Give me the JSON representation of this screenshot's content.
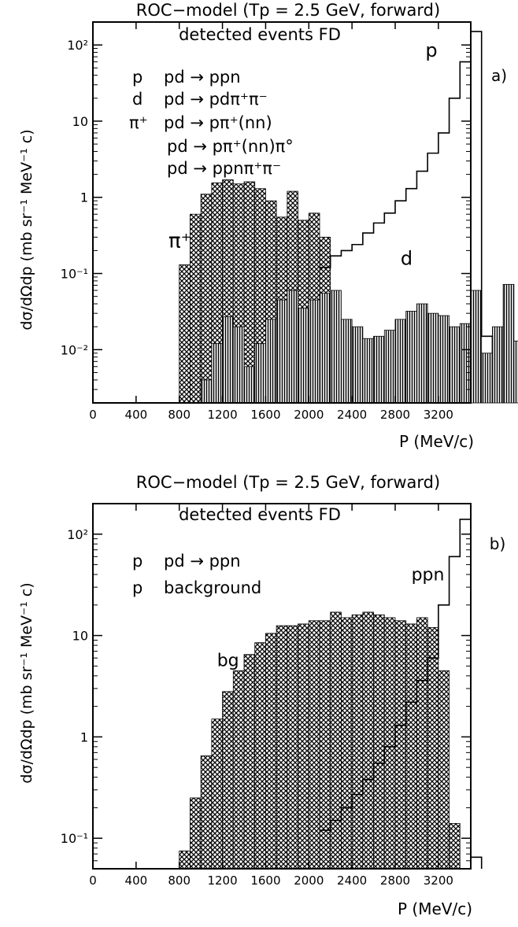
{
  "chart_data": [
    {
      "type": "step-histogram",
      "panel_label": "a)",
      "title": "ROC−model (Tp = 2.5 GeV, forward)",
      "subtitle": "detected events FD",
      "xlabel": "P (MeV/c)",
      "ylabel": "dσ/dΩdp (mb sr⁻¹ MeV⁻¹ c)",
      "xlim": [
        0,
        3500
      ],
      "ylim": [
        0.002,
        200
      ],
      "yscale": "log",
      "xticks": [
        0,
        400,
        800,
        1200,
        1600,
        2000,
        2400,
        2800,
        3200
      ],
      "yticks": [
        {
          "value": 0.01,
          "label": "10⁻²"
        },
        {
          "value": 0.1,
          "label": "10⁻¹"
        },
        {
          "value": 1,
          "label": "1"
        },
        {
          "value": 10,
          "label": "10"
        },
        {
          "value": 100,
          "label": "10²"
        }
      ],
      "bin_width": 100,
      "legend": [
        {
          "symbol": "p",
          "reaction": "pd → ppn"
        },
        {
          "symbol": "d",
          "reaction": "pd → pdπ⁺π⁻"
        },
        {
          "symbol": "π⁺",
          "reaction": "pd → pπ⁺(nn)"
        },
        {
          "symbol": "",
          "reaction": "pd → pπ⁺(nn)π°"
        },
        {
          "symbol": "",
          "reaction": "pd → ppnπ⁺π⁻"
        }
      ],
      "series": [
        {
          "name": "π⁺",
          "style": "crosshatch",
          "x_start": 800,
          "values": [
            0.13,
            0.6,
            1.1,
            1.55,
            1.7,
            1.5,
            1.6,
            1.3,
            0.9,
            0.55,
            1.2,
            0.5,
            0.62,
            0.3
          ]
        },
        {
          "name": "d",
          "style": "hatched",
          "x_start": 1000,
          "values": [
            0.004,
            0.012,
            0.027,
            0.02,
            0.006,
            0.012,
            0.025,
            0.045,
            0.06,
            0.035,
            0.045,
            0.055,
            0.06,
            0.025,
            0.02,
            0.014,
            0.015,
            0.018,
            0.025,
            0.032,
            0.04,
            0.03,
            0.028,
            0.02,
            0.022,
            0.06,
            0.009,
            0.02,
            0.072,
            0.013
          ]
        },
        {
          "name": "p",
          "style": "outline",
          "x_start": 2100,
          "values": [
            0.12,
            0.17,
            0.2,
            0.24,
            0.34,
            0.46,
            0.62,
            0.9,
            1.3,
            2.2,
            3.8,
            7.0,
            20,
            60,
            150,
            0.015
          ]
        }
      ],
      "annotations": [
        {
          "text": "p",
          "x": 3080,
          "y": 70
        },
        {
          "text": "d",
          "x": 2850,
          "y": 0.13
        },
        {
          "text": "π⁺",
          "x": 700,
          "y": 0.22
        }
      ]
    },
    {
      "type": "step-histogram",
      "panel_label": "b)",
      "title": "ROC−model (Tp = 2.5 GeV, forward)",
      "subtitle": "detected events FD",
      "xlabel": "P (MeV/c)",
      "ylabel": "dσ/dΩdp (mb sr⁻¹ MeV⁻¹ c)",
      "xlim": [
        0,
        3500
      ],
      "ylim": [
        0.05,
        200
      ],
      "yscale": "log",
      "xticks": [
        0,
        400,
        800,
        1200,
        1600,
        2000,
        2400,
        2800,
        3200
      ],
      "yticks": [
        {
          "value": 0.1,
          "label": "10⁻¹"
        },
        {
          "value": 1,
          "label": "1"
        },
        {
          "value": 10,
          "label": "10"
        },
        {
          "value": 100,
          "label": "10²"
        }
      ],
      "bin_width": 100,
      "legend": [
        {
          "symbol": "p",
          "reaction": "pd → ppn"
        },
        {
          "symbol": "p",
          "reaction": "background"
        }
      ],
      "series": [
        {
          "name": "bg",
          "style": "crosshatch",
          "x_start": 800,
          "values": [
            0.075,
            0.25,
            0.65,
            1.5,
            2.8,
            4.5,
            6.5,
            8.5,
            10.5,
            12.5,
            12.5,
            13,
            14,
            14,
            17,
            15,
            16,
            17,
            16,
            15,
            14,
            13,
            15,
            12,
            4.5,
            0.14
          ]
        },
        {
          "name": "ppn",
          "style": "outline",
          "x_start": 2100,
          "values": [
            0.12,
            0.15,
            0.2,
            0.27,
            0.38,
            0.55,
            0.8,
            1.3,
            2.2,
            3.6,
            6.0,
            20,
            60,
            140,
            0.065
          ]
        }
      ],
      "annotations": [
        {
          "text": "ppn",
          "x": 2950,
          "y": 35
        },
        {
          "text": "bg",
          "x": 1150,
          "y": 5
        }
      ]
    }
  ]
}
